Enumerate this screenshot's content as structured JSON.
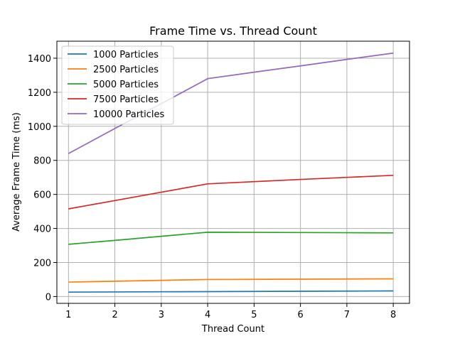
{
  "chart_data": {
    "type": "line",
    "title": "Frame Time vs. Thread Count",
    "xlabel": "Thread Count",
    "ylabel": "Average Frame Time (ms)",
    "x": [
      1,
      2,
      3,
      4,
      5,
      6,
      7,
      8
    ],
    "xlim": [
      0.75,
      8.35
    ],
    "ylim": [
      -40,
      1500
    ],
    "xticks": [
      1,
      2,
      3,
      4,
      5,
      6,
      7,
      8
    ],
    "yticks": [
      0,
      200,
      400,
      600,
      800,
      1000,
      1200,
      1400
    ],
    "grid": true,
    "legend_position": "top-left",
    "series": [
      {
        "name": "1000 Particles",
        "color": "#1f77b4",
        "values": [
          26,
          27,
          28,
          29,
          30,
          31,
          32,
          33
        ]
      },
      {
        "name": "2500 Particles",
        "color": "#ff7f0e",
        "values": [
          85,
          90,
          95,
          100,
          101,
          102,
          103,
          104
        ]
      },
      {
        "name": "5000 Particles",
        "color": "#2ca02c",
        "values": [
          307,
          330,
          354,
          378,
          377,
          376,
          375,
          374
        ]
      },
      {
        "name": "7500 Particles",
        "color": "#d62728",
        "values": [
          515,
          564,
          613,
          662,
          675,
          688,
          700,
          712
        ]
      },
      {
        "name": "10000 Particles",
        "color": "#9467bd",
        "values": [
          840,
          987,
          1133,
          1280,
          1318,
          1355,
          1393,
          1430
        ]
      }
    ]
  }
}
